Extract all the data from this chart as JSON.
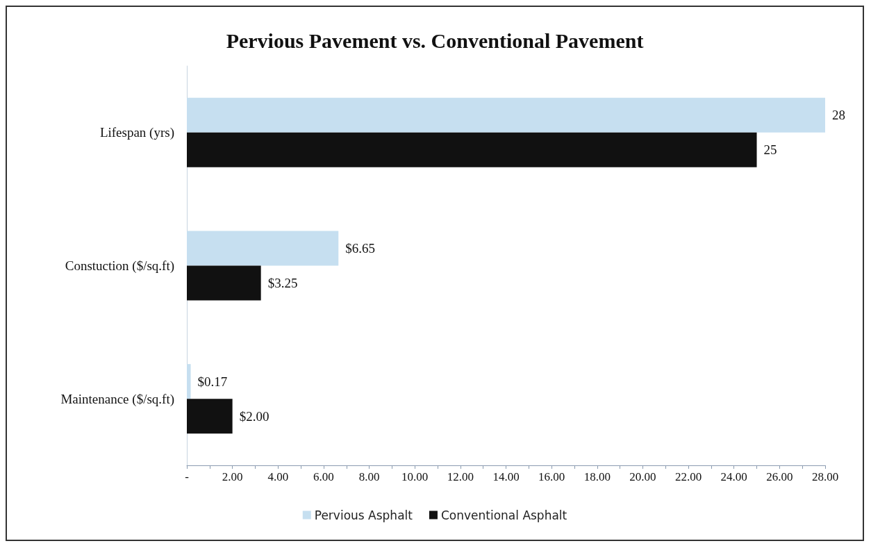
{
  "chart_data": {
    "type": "bar",
    "orientation": "horizontal",
    "title": "Pervious Pavement vs. Conventional Pavement",
    "categories": [
      "Lifespan (yrs)",
      "Constuction ($/sq.ft)",
      "Maintenance ($/sq.ft)"
    ],
    "series": [
      {
        "name": "Pervious Asphalt",
        "color": "#c6dff0",
        "values": [
          28,
          6.65,
          0.17
        ],
        "value_labels": [
          "28",
          "$6.65",
          "$0.17"
        ]
      },
      {
        "name": "Conventional Asphalt",
        "color": "#111111",
        "values": [
          25,
          3.25,
          2.0
        ],
        "value_labels": [
          "25",
          "$3.25",
          "$2.00"
        ]
      }
    ],
    "xlim": [
      0,
      28
    ],
    "xticks": [
      {
        "value": 0,
        "label": "-"
      },
      {
        "value": 1,
        "label": null
      },
      {
        "value": 2,
        "label": "2.00"
      },
      {
        "value": 3,
        "label": null
      },
      {
        "value": 4,
        "label": "4.00"
      },
      {
        "value": 5,
        "label": null
      },
      {
        "value": 6,
        "label": "6.00"
      },
      {
        "value": 7,
        "label": null
      },
      {
        "value": 8,
        "label": "8.00"
      },
      {
        "value": 9,
        "label": null
      },
      {
        "value": 10,
        "label": "10.00"
      },
      {
        "value": 11,
        "label": null
      },
      {
        "value": 12,
        "label": "12.00"
      },
      {
        "value": 13,
        "label": null
      },
      {
        "value": 14,
        "label": "14.00"
      },
      {
        "value": 15,
        "label": null
      },
      {
        "value": 16,
        "label": "16.00"
      },
      {
        "value": 17,
        "label": null
      },
      {
        "value": 18,
        "label": "18.00"
      },
      {
        "value": 19,
        "label": null
      },
      {
        "value": 20,
        "label": "20.00"
      },
      {
        "value": 21,
        "label": null
      },
      {
        "value": 22,
        "label": "22.00"
      },
      {
        "value": 23,
        "label": null
      },
      {
        "value": 24,
        "label": "24.00"
      },
      {
        "value": 25,
        "label": null
      },
      {
        "value": 26,
        "label": "26.00"
      },
      {
        "value": 27,
        "label": null
      },
      {
        "value": 28,
        "label": "28.00"
      }
    ],
    "legend": "bottom"
  }
}
